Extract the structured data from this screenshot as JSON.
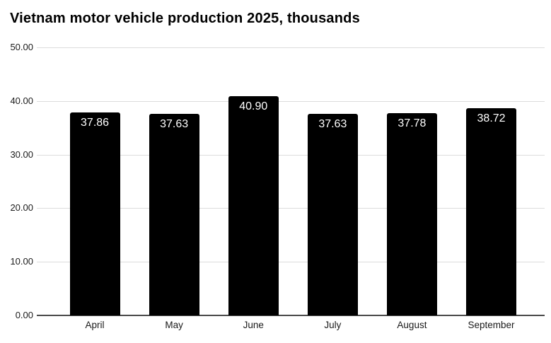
{
  "chart_data": {
    "type": "bar",
    "title": "Vietnam motor vehicle production 2025, thousands",
    "categories": [
      "April",
      "May",
      "June",
      "July",
      "August",
      "September"
    ],
    "values": [
      37.86,
      37.63,
      40.9,
      37.63,
      37.78,
      38.72
    ],
    "bar_labels": [
      "37.86",
      "37.63",
      "40.90",
      "37.63",
      "37.78",
      "38.72"
    ],
    "xlabel": "",
    "ylabel": "",
    "ylim": [
      0,
      50
    ],
    "ytick_values": [
      0,
      10,
      20,
      30,
      40,
      50
    ],
    "ytick_labels": [
      "0.00",
      "10.00",
      "20.00",
      "30.00",
      "40.00",
      "50.00"
    ],
    "grid": true,
    "legend": "none",
    "colors": {
      "bar": "#000000",
      "bar_label_text": "#ffffff",
      "gridline": "#dcdcdc",
      "axis_line": "#4a4a4a",
      "tick_text": "#1a1a1a",
      "title_text": "#000000",
      "background": "#ffffff"
    }
  }
}
